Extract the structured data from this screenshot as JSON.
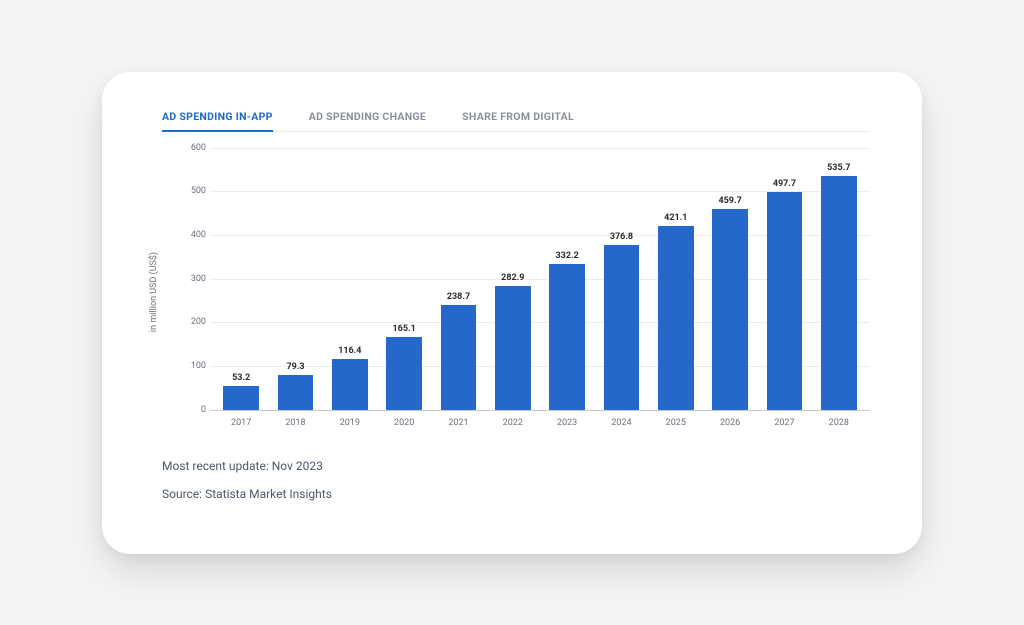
{
  "tabs": [
    {
      "label": "AD SPENDING IN-APP",
      "active": true
    },
    {
      "label": "AD SPENDING CHANGE",
      "active": false
    },
    {
      "label": "SHARE FROM DIGITAL",
      "active": false
    }
  ],
  "chart": {
    "type": "bar",
    "ylabel": "in million USD (US$)",
    "ylim": [
      0,
      600
    ],
    "ytick_step": 100,
    "yticks": [
      0,
      100,
      200,
      300,
      400,
      500,
      600
    ],
    "categories": [
      "2017",
      "2018",
      "2019",
      "2020",
      "2021",
      "2022",
      "2023",
      "2024",
      "2025",
      "2026",
      "2027",
      "2028"
    ],
    "values": [
      53.2,
      79.3,
      116.4,
      165.1,
      238.7,
      282.9,
      332.2,
      376.8,
      421.1,
      459.7,
      497.7,
      535.7
    ],
    "bar_color": "#2469c9",
    "grid_color": "#ececec",
    "baseline_color": "#c8c8c8",
    "background_color": "#ffffff",
    "bar_width_pct": 66,
    "label_fontsize": 9,
    "label_fontweight": 700,
    "tick_fontsize": 9,
    "tick_color": "#6a6f78",
    "active_tab_color": "#1b6ac9",
    "inactive_tab_color": "#8a8f99"
  },
  "footer": {
    "update": "Most recent update: Nov 2023",
    "source": "Source: Statista Market Insights",
    "text_color": "#4e5866"
  },
  "card": {
    "background": "#ffffff",
    "border_radius": 28,
    "shadow": "0 18px 40px rgba(0,0,0,0.12)"
  }
}
